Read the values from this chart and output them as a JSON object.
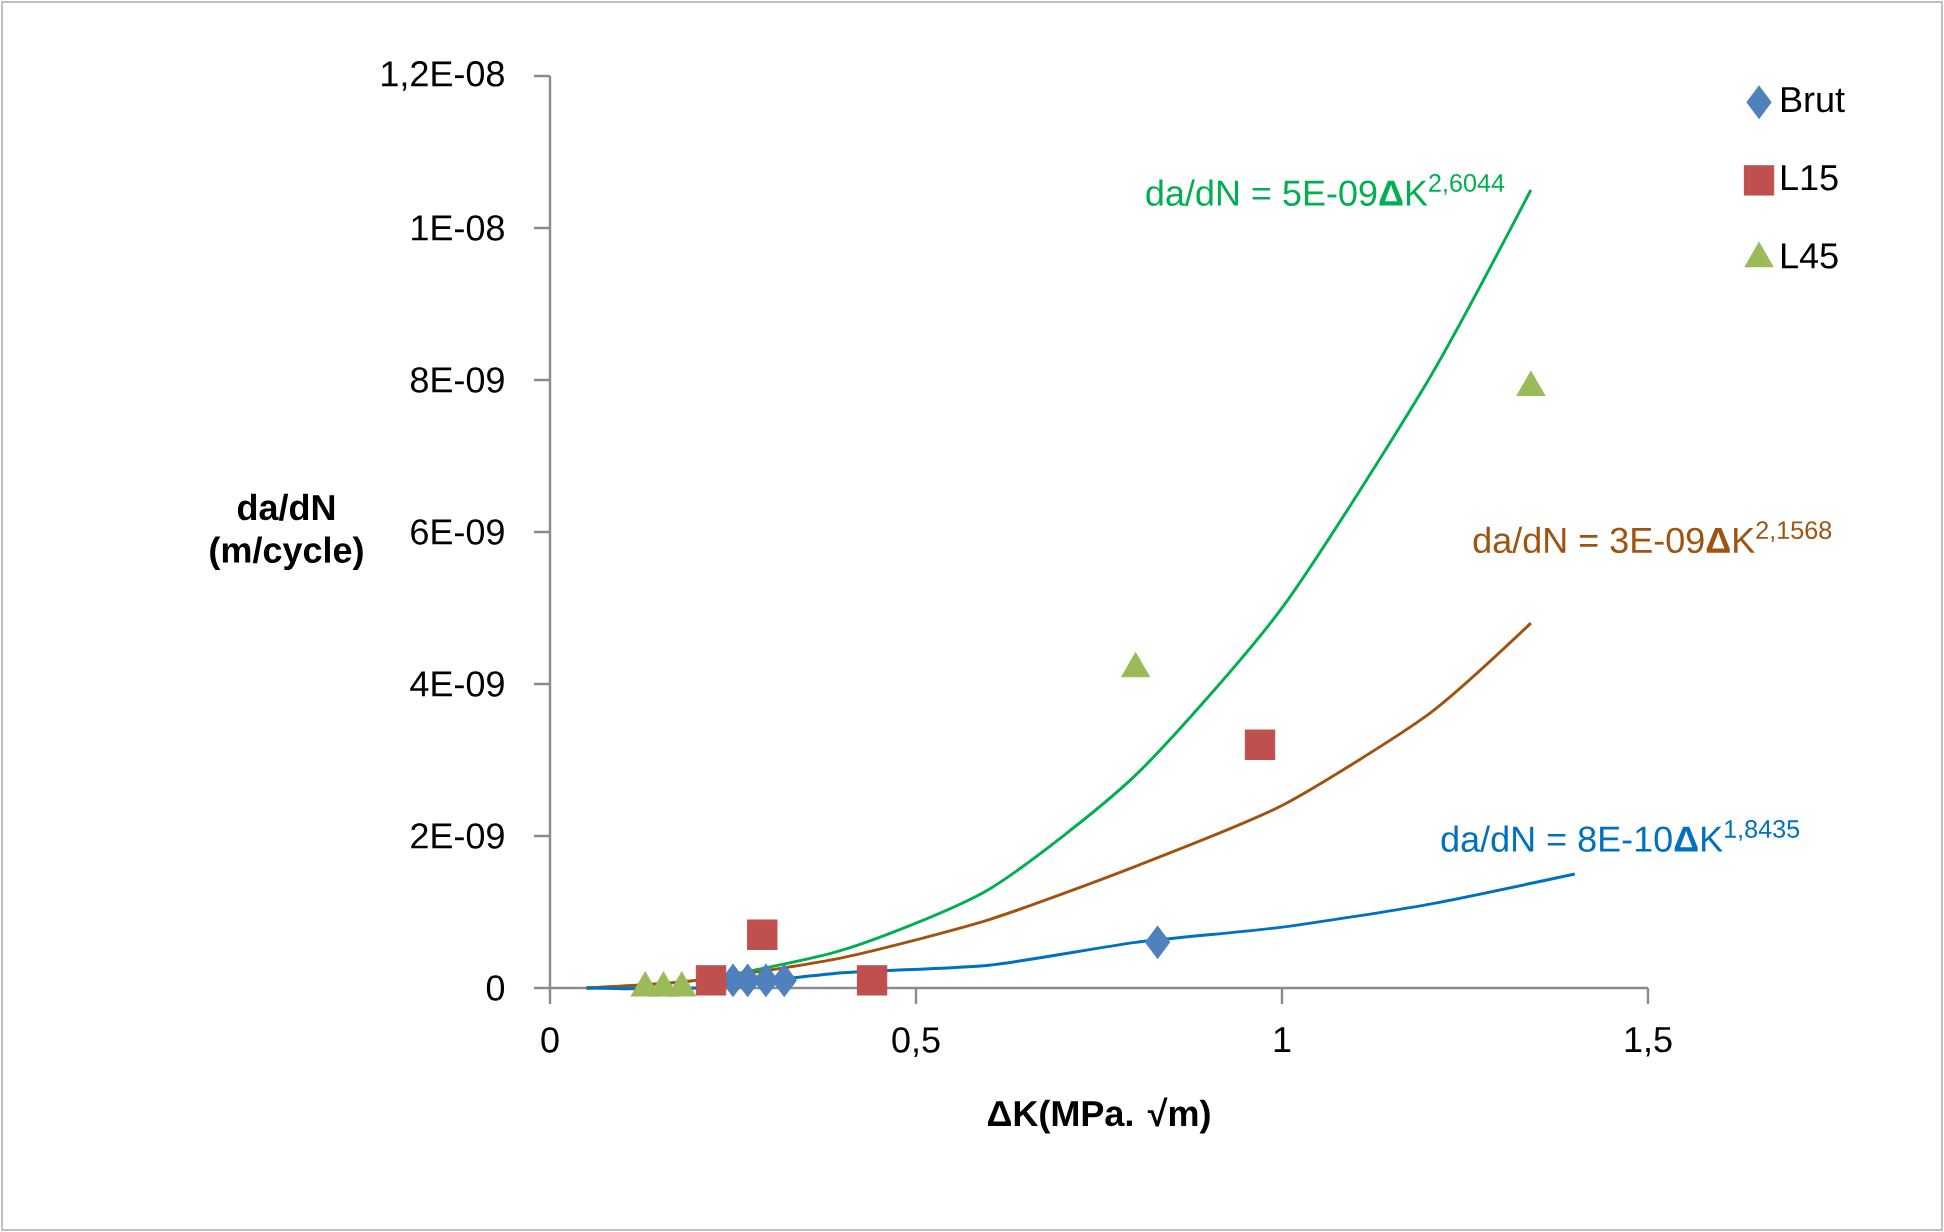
{
  "chart_data": {
    "type": "scatter",
    "xlabel": "ΔK(MPa. √m)",
    "ylabel": "da/dN (m/cycle)",
    "xlim": [
      0,
      1.5
    ],
    "ylim": [
      0,
      1.2e-08
    ],
    "xticks": [
      0,
      {
        "value": 0.5,
        "label": "0,5"
      },
      1,
      {
        "value": 1.5,
        "label": "1,5"
      }
    ],
    "yticks": [
      0,
      {
        "value": 2e-09,
        "label": "2E-09"
      },
      {
        "value": 4e-09,
        "label": "4E-09"
      },
      {
        "value": 6e-09,
        "label": "6E-09"
      },
      {
        "value": 8e-09,
        "label": "8E-09"
      },
      {
        "value": 1e-08,
        "label": "1E-08"
      },
      {
        "value": 1.2e-08,
        "label": "1,2E-08"
      }
    ],
    "grid": false,
    "legend": "top right",
    "series": [
      {
        "name": "Brut",
        "marker": "diamond",
        "color": "#4f81bd",
        "x": [
          0.25,
          0.27,
          0.295,
          0.32,
          0.83
        ],
        "values": [
          1e-10,
          1e-10,
          1e-10,
          1e-10,
          6e-10
        ]
      },
      {
        "name": "L15",
        "marker": "square",
        "color": "#c0504d",
        "x": [
          0.22,
          0.29,
          0.44,
          0.97
        ],
        "values": [
          1e-10,
          7e-10,
          1e-10,
          3.2e-09
        ]
      },
      {
        "name": "L45",
        "marker": "triangle",
        "color": "#9bbb59",
        "x": [
          0.13,
          0.155,
          0.18,
          0.8,
          1.34
        ],
        "values": [
          0,
          0,
          0,
          4.2e-09,
          7.9e-09
        ]
      },
      {
        "name": "da/dN = 5E-09**Δ**K$^{2,6044}$",
        "type": "line",
        "marker": "none",
        "line_style": "solid",
        "color": "#00b050",
        "x": [
          0.05,
          0.2,
          0.4,
          0.6,
          0.8,
          1.0,
          1.2,
          1.34
        ],
        "values": [
          0,
          1e-10,
          5e-10,
          1.3e-09,
          2.8e-09,
          5e-09,
          8e-09,
          1.05e-08
        ]
      },
      {
        "name": "da/dN = 3E-09**Δ**K$^{2,1568}$",
        "type": "line",
        "marker": "none",
        "line_style": "solid",
        "color": "#a0520f",
        "x": [
          0.05,
          0.2,
          0.4,
          0.6,
          0.8,
          1.0,
          1.2,
          1.34
        ],
        "values": [
          0,
          1e-10,
          4e-10,
          9e-10,
          1.6e-09,
          2.4e-09,
          3.6e-09,
          4.8e-09
        ]
      },
      {
        "name": "da/dN = 8E-10**Δ**K$^{1,8435}$",
        "type": "line",
        "marker": "none",
        "line_style": "solid",
        "color": "#0070c0",
        "x": [
          0.05,
          0.2,
          0.4,
          0.6,
          0.8,
          1.0,
          1.2,
          1.4
        ],
        "values": [
          0,
          0,
          2e-10,
          3e-10,
          6e-10,
          8e-10,
          1.1e-09,
          1.5e-09
        ]
      }
    ]
  }
}
